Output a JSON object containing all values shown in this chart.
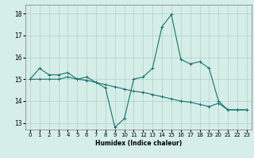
{
  "title": "",
  "xlabel": "Humidex (Indice chaleur)",
  "ylabel": "",
  "xlim": [
    -0.5,
    23.5
  ],
  "ylim": [
    12.7,
    18.4
  ],
  "yticks": [
    13,
    14,
    15,
    16,
    17,
    18
  ],
  "xticks": [
    0,
    1,
    2,
    3,
    4,
    5,
    6,
    7,
    8,
    9,
    10,
    11,
    12,
    13,
    14,
    15,
    16,
    17,
    18,
    19,
    20,
    21,
    22,
    23
  ],
  "bg_color": "#d6eee8",
  "grid_color": "#b0cfc8",
  "line_color": "#1a7070",
  "line1_x": [
    0,
    1,
    2,
    3,
    4,
    5,
    6,
    7,
    8,
    9,
    10,
    11,
    12,
    13,
    14,
    15,
    16,
    17,
    18,
    19,
    20,
    21,
    22,
    23
  ],
  "line1_y": [
    15.0,
    15.5,
    15.2,
    15.2,
    15.3,
    15.0,
    15.1,
    14.85,
    14.6,
    12.8,
    13.2,
    15.0,
    15.1,
    15.5,
    17.4,
    17.95,
    15.9,
    15.7,
    15.8,
    15.5,
    14.0,
    13.6,
    13.6,
    13.6
  ],
  "line2_x": [
    0,
    1,
    2,
    3,
    4,
    5,
    6,
    7,
    8,
    9,
    10,
    11,
    12,
    13,
    14,
    15,
    16,
    17,
    18,
    19,
    20,
    21,
    22,
    23
  ],
  "line2_y": [
    15.0,
    15.0,
    15.0,
    15.0,
    15.1,
    15.0,
    14.95,
    14.85,
    14.75,
    14.65,
    14.55,
    14.45,
    14.4,
    14.3,
    14.2,
    14.1,
    14.0,
    13.95,
    13.85,
    13.75,
    13.9,
    13.6,
    13.6,
    13.6
  ]
}
